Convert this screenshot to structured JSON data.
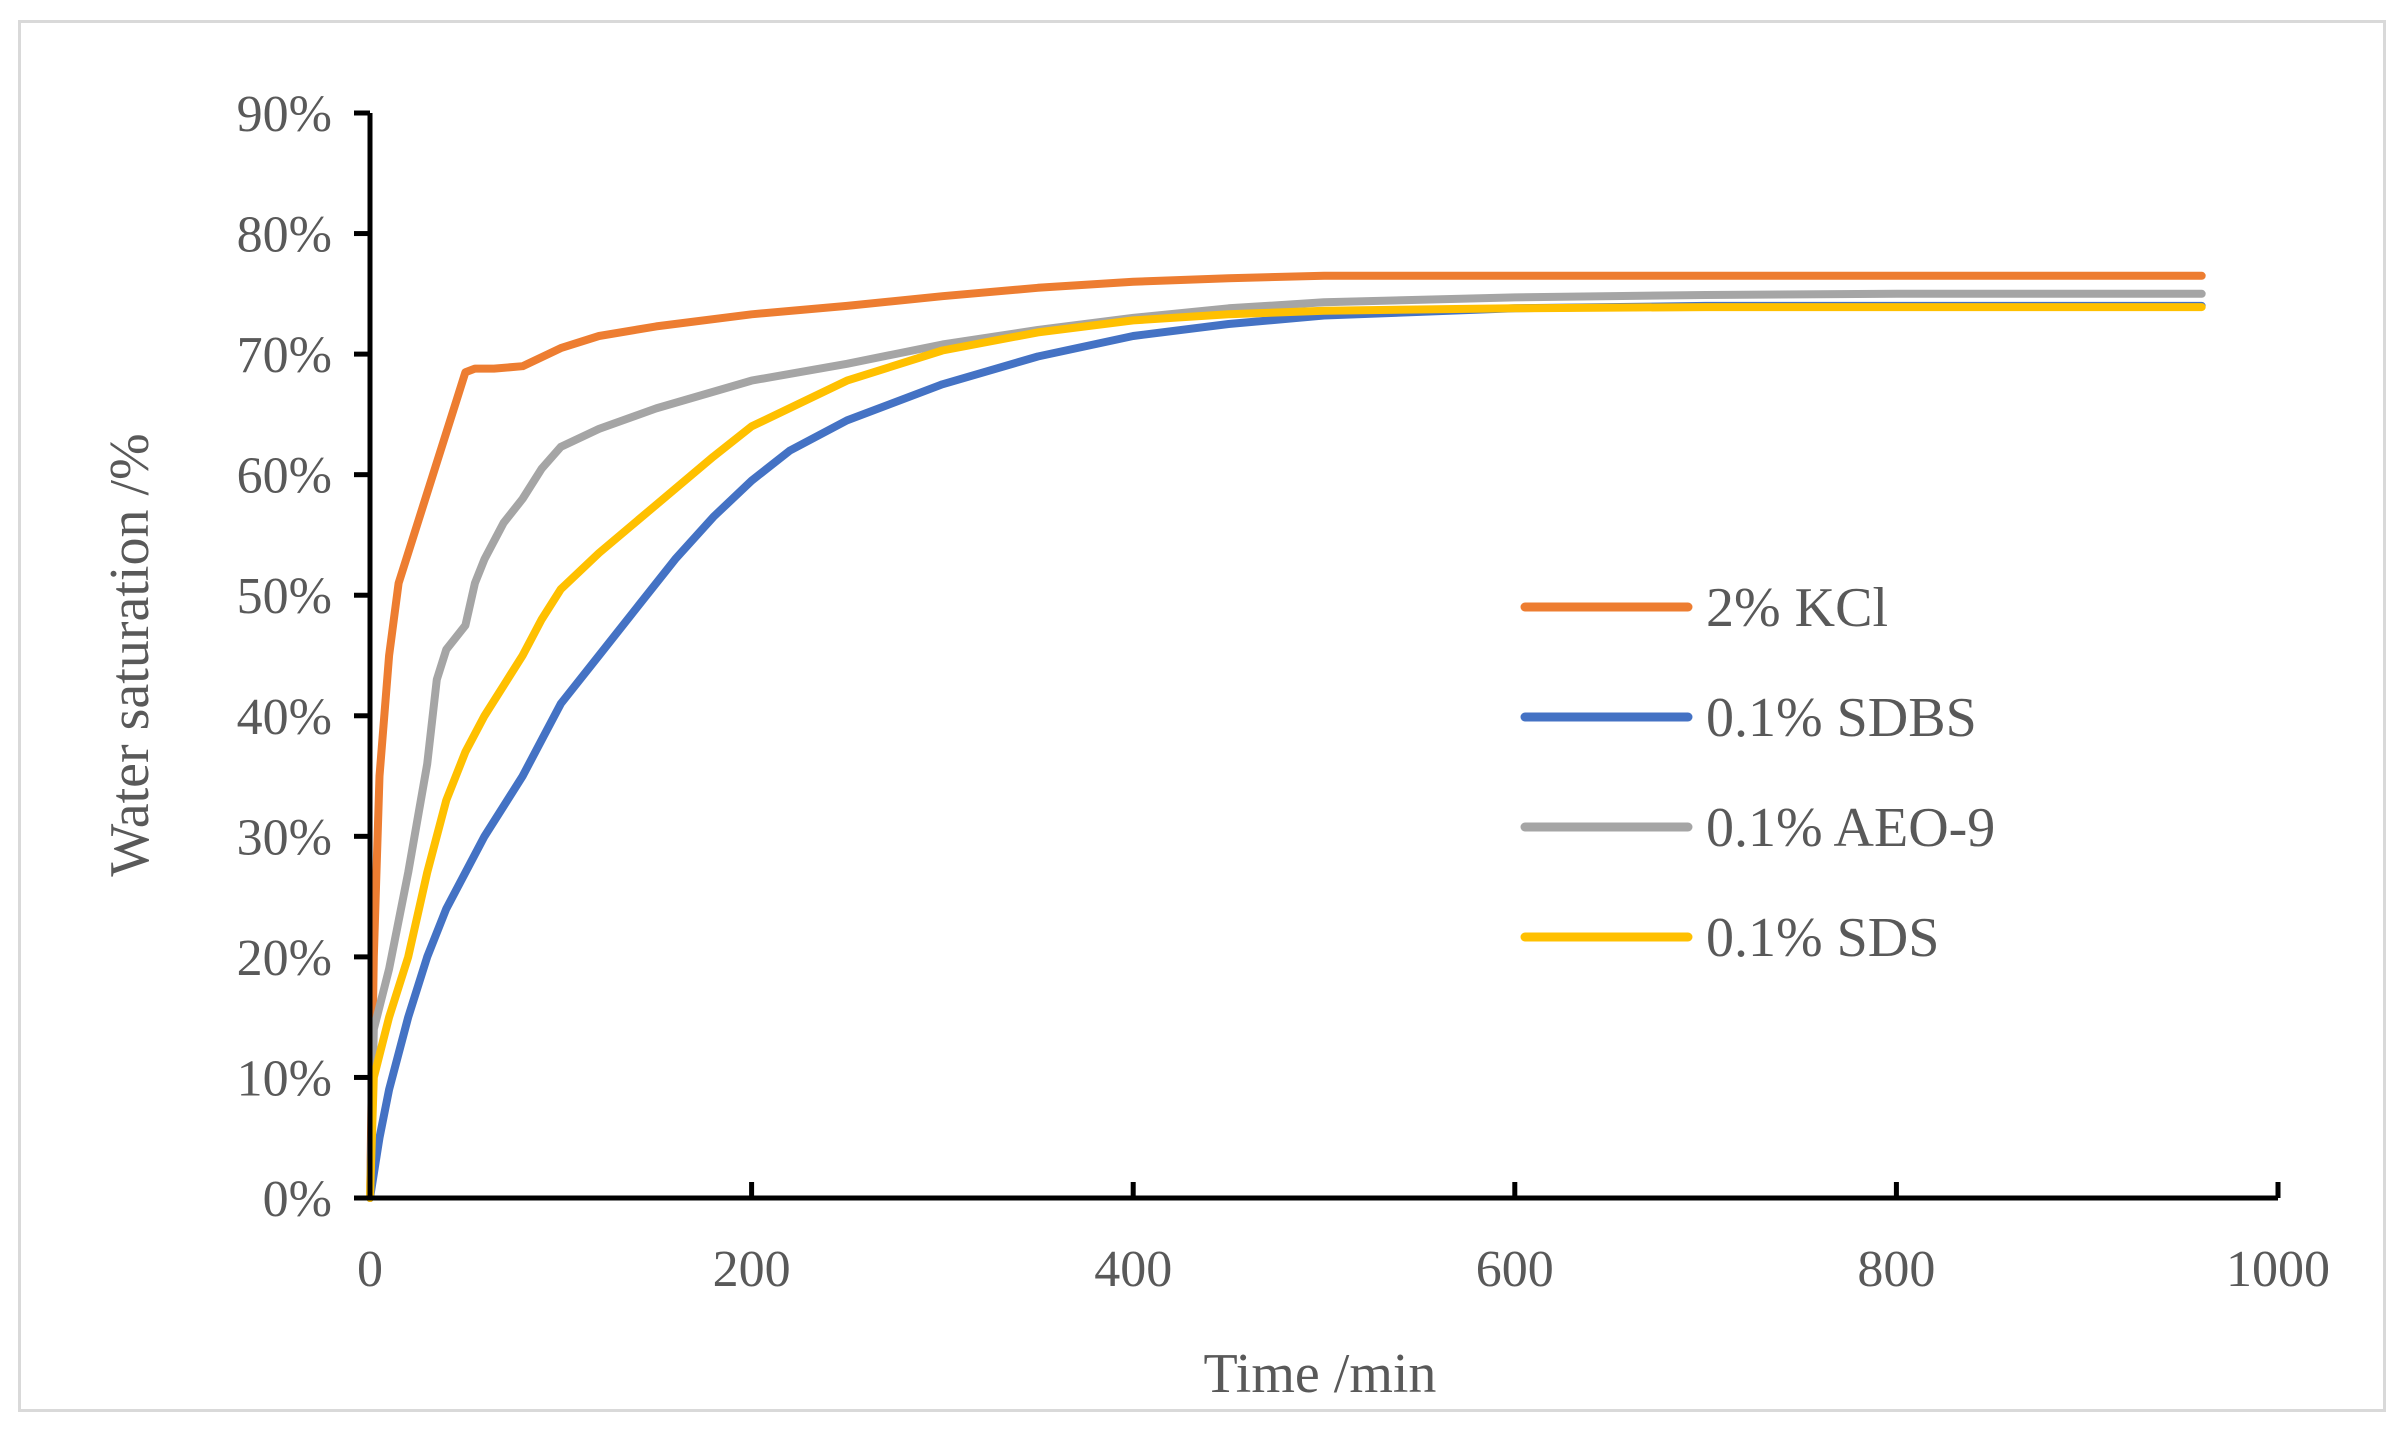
{
  "chart_data": {
    "type": "line",
    "title": "",
    "xlabel": "Time /min",
    "ylabel": "Water saturation /%",
    "xlim": [
      0,
      1000
    ],
    "ylim": [
      0,
      90
    ],
    "x_ticks": [
      0,
      200,
      400,
      600,
      800,
      1000
    ],
    "y_ticks": [
      0,
      10,
      20,
      30,
      40,
      50,
      60,
      70,
      80,
      90
    ],
    "y_tick_labels": [
      "0%",
      "10%",
      "20%",
      "30%",
      "40%",
      "50%",
      "60%",
      "70%",
      "80%",
      "90%"
    ],
    "x_tick_labels": [
      "0",
      "200",
      "400",
      "600",
      "800",
      "1000"
    ],
    "grid": false,
    "legend_position": "right-center",
    "series": [
      {
        "name": "2% KCl",
        "color": "#ED7D31",
        "points": [
          [
            0,
            0
          ],
          [
            2,
            20
          ],
          [
            5,
            35
          ],
          [
            10,
            45
          ],
          [
            15,
            51
          ],
          [
            25,
            56
          ],
          [
            35,
            61
          ],
          [
            45,
            66
          ],
          [
            50,
            68.5
          ],
          [
            55,
            68.8
          ],
          [
            65,
            68.8
          ],
          [
            80,
            69
          ],
          [
            100,
            70.5
          ],
          [
            120,
            71.5
          ],
          [
            150,
            72.3
          ],
          [
            200,
            73.3
          ],
          [
            250,
            74
          ],
          [
            300,
            74.8
          ],
          [
            350,
            75.5
          ],
          [
            400,
            76
          ],
          [
            450,
            76.3
          ],
          [
            500,
            76.5
          ],
          [
            600,
            76.5
          ],
          [
            700,
            76.5
          ],
          [
            800,
            76.5
          ],
          [
            900,
            76.5
          ],
          [
            960,
            76.5
          ]
        ]
      },
      {
        "name": "0.1% SDBS",
        "color": "#4472C4",
        "points": [
          [
            0,
            0
          ],
          [
            5,
            5
          ],
          [
            10,
            9
          ],
          [
            20,
            15
          ],
          [
            30,
            20
          ],
          [
            40,
            24
          ],
          [
            50,
            27
          ],
          [
            60,
            30
          ],
          [
            70,
            32.5
          ],
          [
            80,
            35
          ],
          [
            90,
            38
          ],
          [
            100,
            41
          ],
          [
            120,
            45
          ],
          [
            140,
            49
          ],
          [
            160,
            53
          ],
          [
            180,
            56.5
          ],
          [
            200,
            59.5
          ],
          [
            220,
            62
          ],
          [
            250,
            64.5
          ],
          [
            300,
            67.5
          ],
          [
            350,
            69.8
          ],
          [
            400,
            71.5
          ],
          [
            450,
            72.5
          ],
          [
            500,
            73.2
          ],
          [
            600,
            73.8
          ],
          [
            700,
            74
          ],
          [
            800,
            74
          ],
          [
            900,
            74
          ],
          [
            960,
            74
          ]
        ]
      },
      {
        "name": "0.1% AEO-9",
        "color": "#A5A5A5",
        "points": [
          [
            0,
            0
          ],
          [
            2,
            14
          ],
          [
            10,
            19
          ],
          [
            20,
            27
          ],
          [
            30,
            36
          ],
          [
            35,
            43
          ],
          [
            40,
            45.5
          ],
          [
            50,
            47.5
          ],
          [
            55,
            51
          ],
          [
            60,
            53
          ],
          [
            70,
            56
          ],
          [
            80,
            58
          ],
          [
            90,
            60.5
          ],
          [
            100,
            62.3
          ],
          [
            120,
            63.8
          ],
          [
            150,
            65.5
          ],
          [
            200,
            67.8
          ],
          [
            250,
            69.2
          ],
          [
            300,
            70.8
          ],
          [
            350,
            72
          ],
          [
            400,
            73
          ],
          [
            450,
            73.8
          ],
          [
            500,
            74.3
          ],
          [
            600,
            74.7
          ],
          [
            700,
            74.9
          ],
          [
            800,
            75
          ],
          [
            900,
            75
          ],
          [
            960,
            75
          ]
        ]
      },
      {
        "name": "0.1% SDS",
        "color": "#FFC000",
        "points": [
          [
            0,
            0
          ],
          [
            2,
            10
          ],
          [
            10,
            15
          ],
          [
            20,
            20
          ],
          [
            30,
            27
          ],
          [
            40,
            33
          ],
          [
            50,
            37
          ],
          [
            60,
            40
          ],
          [
            70,
            42.5
          ],
          [
            80,
            45
          ],
          [
            90,
            48
          ],
          [
            100,
            50.5
          ],
          [
            120,
            53.5
          ],
          [
            150,
            57.5
          ],
          [
            180,
            61.5
          ],
          [
            200,
            64
          ],
          [
            250,
            67.8
          ],
          [
            300,
            70.3
          ],
          [
            350,
            71.8
          ],
          [
            400,
            72.8
          ],
          [
            450,
            73.3
          ],
          [
            500,
            73.6
          ],
          [
            600,
            73.8
          ],
          [
            700,
            73.9
          ],
          [
            800,
            73.9
          ],
          [
            900,
            73.9
          ],
          [
            960,
            73.9
          ]
        ]
      }
    ]
  }
}
